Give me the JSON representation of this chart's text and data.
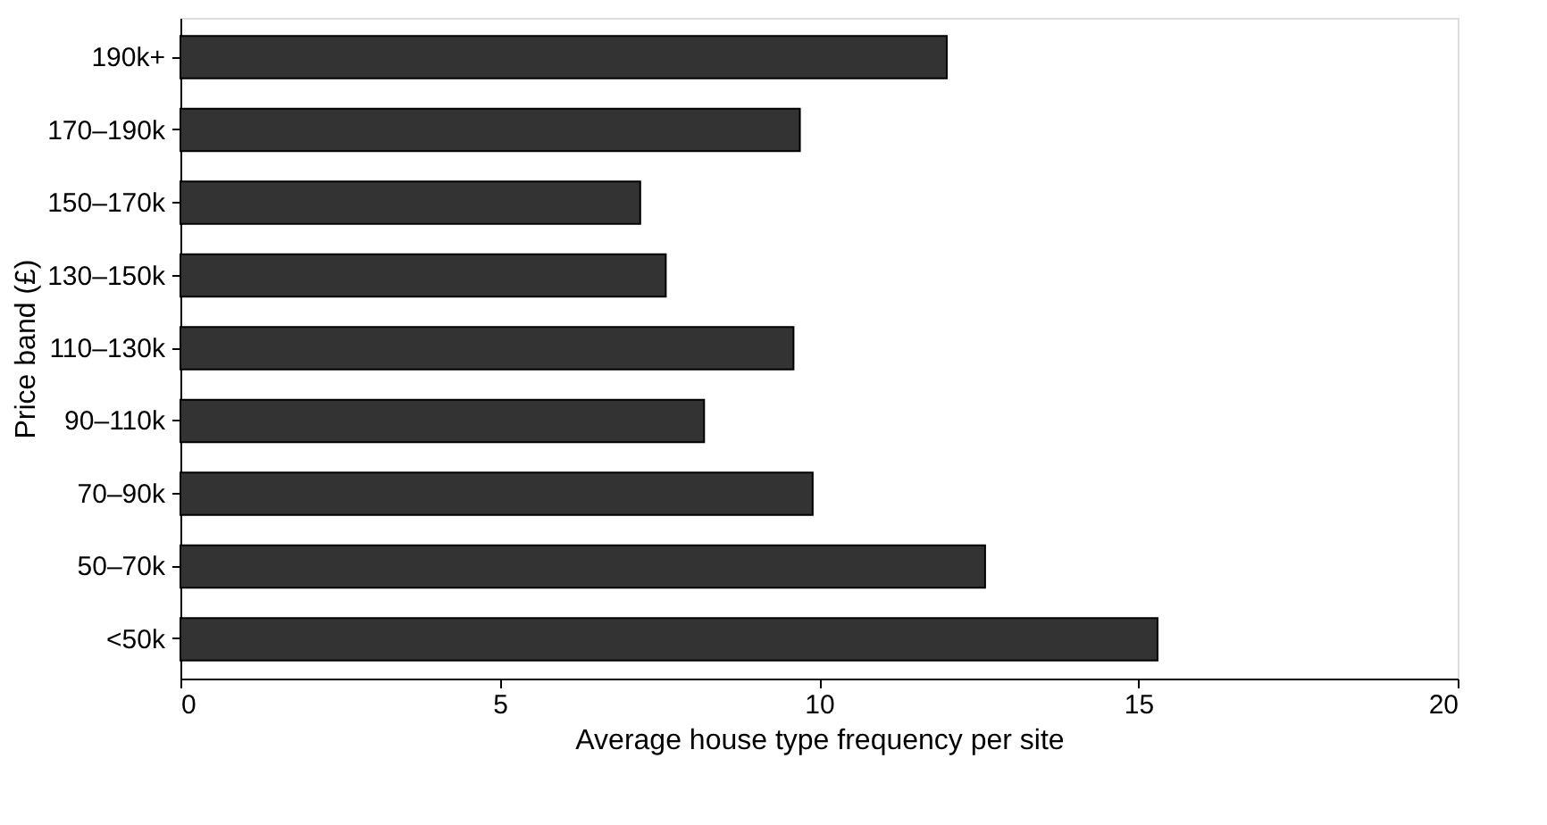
{
  "chart_data": {
    "type": "bar",
    "orientation": "horizontal",
    "xlabel": "Average house type frequency per site",
    "ylabel": "Price band (£)",
    "categories": [
      "190k+",
      "170–190k",
      "150–170k",
      "130–150k",
      "110–130k",
      "90–110k",
      "70–90k",
      "50–70k",
      "<50k"
    ],
    "values": [
      12.0,
      9.7,
      7.2,
      7.6,
      9.6,
      8.2,
      9.9,
      12.6,
      15.3
    ],
    "color": "#333333",
    "xlim": [
      0,
      20
    ],
    "xticks": [
      0,
      5,
      10,
      15,
      20
    ],
    "grid": false
  }
}
